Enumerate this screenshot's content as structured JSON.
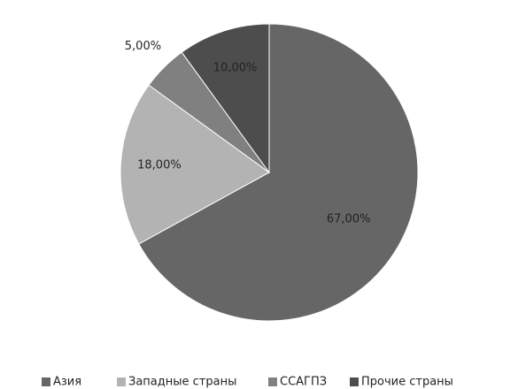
{
  "chart_data": {
    "type": "pie",
    "categories": [
      "Азия",
      "Западные страны",
      "ССАГПЗ",
      "Прочие страны"
    ],
    "values": [
      67,
      18,
      5,
      10
    ],
    "value_labels": [
      "67,00%",
      "18,00%",
      "5,00%",
      "10,00%"
    ],
    "colors": [
      "#666666",
      "#b3b3b3",
      "#808080",
      "#4d4d4d"
    ],
    "legend": "bottom"
  }
}
